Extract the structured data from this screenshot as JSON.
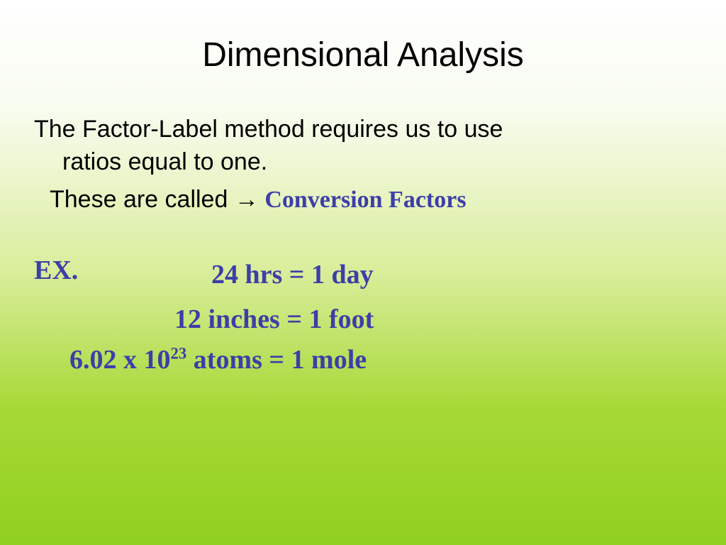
{
  "colors": {
    "background_top": "#ffffff",
    "background_mid": "#d9ed9a",
    "background_bottom": "#8fcf1f",
    "title_color": "#000000",
    "body_text_color": "#000000",
    "emphasis_color": "#3e3ea8"
  },
  "typography": {
    "title_font": "Arial",
    "body_font": "Arial",
    "emphasis_font": "Comic Sans MS",
    "title_fontsize": 48,
    "body_fontsize": 34,
    "example_fontsize": 38
  },
  "title": "Dimensional Analysis",
  "intro_line1": "The Factor-Label method requires us to use",
  "intro_line2": "ratios equal to one.",
  "called_prefix": "These are called ",
  "arrow_glyph": "→",
  "called_term": " Conversion Factors",
  "example_label": "EX.",
  "examples": {
    "line1": "24 hrs = 1 day",
    "line2": "12 inches = 1 foot",
    "line3_pre": "6.02 x 10",
    "line3_exp": "23",
    "line3_post": " atoms = 1 mole"
  }
}
